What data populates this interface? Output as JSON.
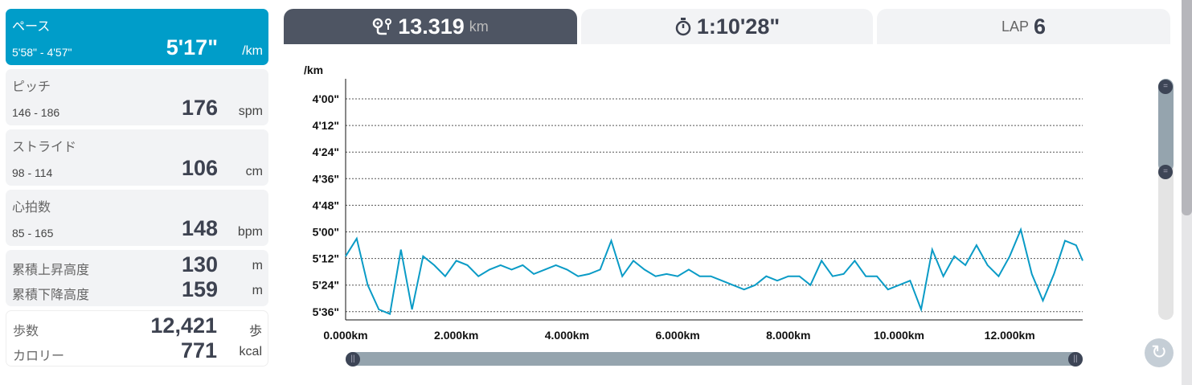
{
  "stats": {
    "pace": {
      "label": "ペース",
      "range": "5'58\" - 4'57\"",
      "value": "5'17\"",
      "unit": "/km"
    },
    "pitch": {
      "label": "ピッチ",
      "range": "146 - 186",
      "value": "176",
      "unit": "spm"
    },
    "stride": {
      "label": "ストライド",
      "range": "98 - 114",
      "value": "106",
      "unit": "cm"
    },
    "heart": {
      "label": "心拍数",
      "range": "85 - 165",
      "value": "148",
      "unit": "bpm"
    },
    "ascent": {
      "label": "累積上昇高度",
      "value": "130",
      "unit": "m"
    },
    "descent": {
      "label": "累積下降高度",
      "value": "159",
      "unit": "m"
    },
    "steps": {
      "label": "歩数",
      "value": "12,421",
      "unit": "歩"
    },
    "calories": {
      "label": "カロリー",
      "value": "771",
      "unit": "kcal"
    }
  },
  "tabs": {
    "distance": {
      "icon": "route-icon",
      "value": "13.319",
      "unit": "km"
    },
    "time": {
      "icon": "stopwatch-icon",
      "value": "1:10'28\""
    },
    "lap": {
      "label": "LAP",
      "value": "6"
    }
  },
  "colors": {
    "accent": "#009dc9",
    "line": "#0a9bc6",
    "dark": "#4e5563"
  },
  "chart_data": {
    "type": "line",
    "ylabel": "/km",
    "y_inverted": true,
    "yticks": [
      "4'00\"",
      "4'12\"",
      "4'24\"",
      "4'36\"",
      "4'48\"",
      "5'00\"",
      "5'12\"",
      "5'24\"",
      "5'36\""
    ],
    "xticks": [
      "0.000km",
      "2.000km",
      "4.000km",
      "6.000km",
      "8.000km",
      "10.000km",
      "12.000km"
    ],
    "xlim": [
      0,
      13.319
    ],
    "ylim": [
      "4'00\"",
      "5'38\""
    ],
    "grid": "horizontal dashed",
    "x": [
      0,
      0.2,
      0.4,
      0.6,
      0.8,
      1.0,
      1.2,
      1.4,
      1.6,
      1.8,
      2.0,
      2.2,
      2.4,
      2.6,
      2.8,
      3.0,
      3.2,
      3.4,
      3.6,
      3.8,
      4.0,
      4.2,
      4.4,
      4.6,
      4.8,
      5.0,
      5.2,
      5.4,
      5.6,
      5.8,
      6.0,
      6.2,
      6.4,
      6.6,
      6.8,
      7.0,
      7.2,
      7.4,
      7.6,
      7.8,
      8.0,
      8.2,
      8.4,
      8.6,
      8.8,
      9.0,
      9.2,
      9.4,
      9.6,
      9.8,
      10.0,
      10.2,
      10.4,
      10.6,
      10.8,
      11.0,
      11.2,
      11.4,
      11.6,
      11.8,
      12.0,
      12.2,
      12.4,
      12.6,
      12.8,
      13.0,
      13.2,
      13.319
    ],
    "pace": [
      "5'11\"",
      "5'03\"",
      "5'24\"",
      "5'35\"",
      "5'37\"",
      "5'08\"",
      "5'35\"",
      "5'11\"",
      "5'15\"",
      "5'20\"",
      "5'13\"",
      "5'15\"",
      "5'20\"",
      "5'17\"",
      "5'15\"",
      "5'17\"",
      "5'15\"",
      "5'19\"",
      "5'17\"",
      "5'15\"",
      "5'17\"",
      "5'20\"",
      "5'19\"",
      "5'17\"",
      "5'04\"",
      "5'20\"",
      "5'13\"",
      "5'17\"",
      "5'20\"",
      "5'19\"",
      "5'20\"",
      "5'17\"",
      "5'20\"",
      "5'20\"",
      "5'22\"",
      "5'24\"",
      "5'26\"",
      "5'24\"",
      "5'20\"",
      "5'22\"",
      "5'20\"",
      "5'20\"",
      "5'24\"",
      "5'13\"",
      "5'20\"",
      "5'19\"",
      "5'13\"",
      "5'20\"",
      "5'20\"",
      "5'26\"",
      "5'24\"",
      "5'22\"",
      "5'35\"",
      "5'08\"",
      "5'20\"",
      "5'11\"",
      "5'15\"",
      "5'06\"",
      "5'15\"",
      "5'20\"",
      "5'11\"",
      "4'59\"",
      "5'19\"",
      "5'31\"",
      "5'19\"",
      "5'04\"",
      "5'06\"",
      "5'13\""
    ]
  }
}
